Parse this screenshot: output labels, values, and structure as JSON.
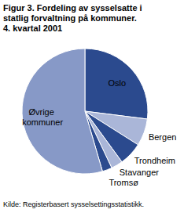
{
  "chart_data": {
    "type": "pie",
    "title": "Figur 3. Fordeling av sysselsatte i statlig forvaltning på kommuner. 4. kvartal 2001",
    "categories": [
      "Oslo",
      "Bergen",
      "Trondheim",
      "Stavanger",
      "Tromsø",
      "Øvrige kommuner"
    ],
    "values": [
      27,
      7,
      6,
      3,
      2.5,
      54.5
    ],
    "colors": [
      "#2b4a8e",
      "#aab6d8",
      "#2b4a8e",
      "#aab6d8",
      "#2b4a8e",
      "#8799c7"
    ],
    "source": "Kilde: Registerbasert sysselsettingsstatistikk."
  }
}
